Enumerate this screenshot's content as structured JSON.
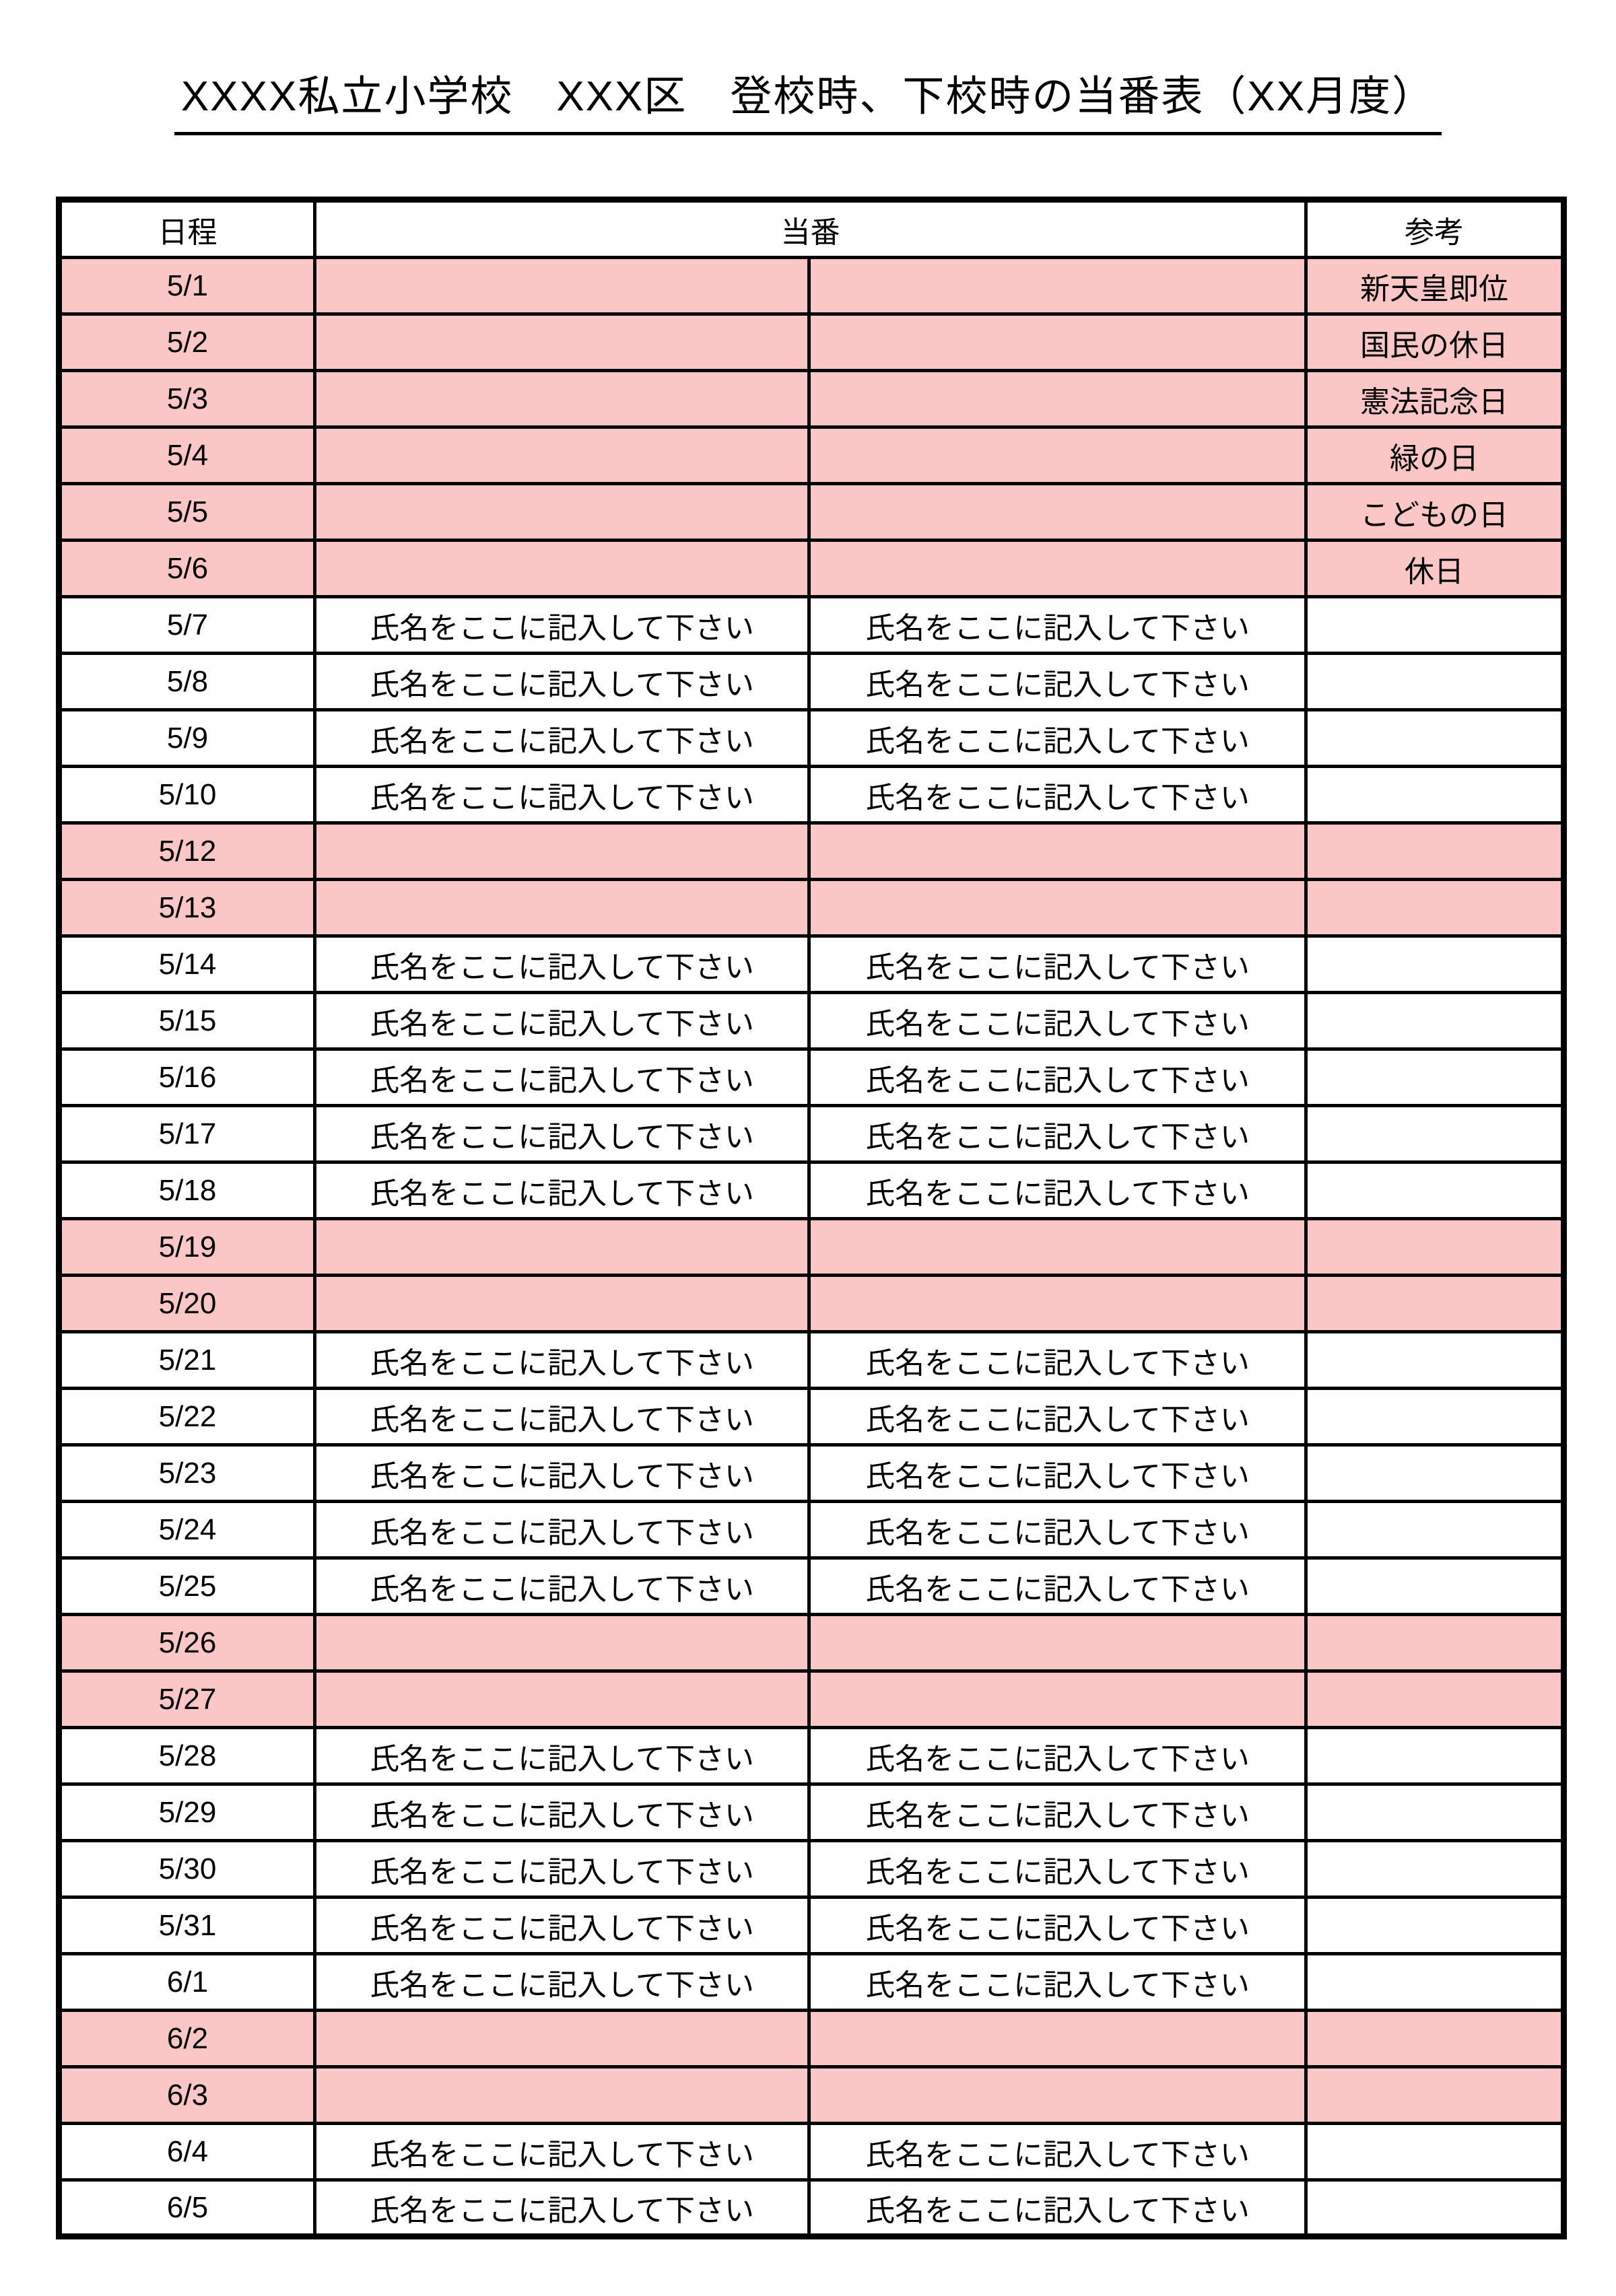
{
  "page": {
    "title": "XXXX私立小学校　XXX区　登校時、下校時の当番表（XX月度）"
  },
  "table": {
    "headers": {
      "date": "日程",
      "duty": "当番",
      "reference": "参考"
    },
    "duty_placeholder": "氏名をここに記入して下さい",
    "colors": {
      "holiday_row_bg": "#FAC6C6",
      "weekday_row_bg": "#FFFFFF",
      "border": "#000000",
      "text": "#000000"
    },
    "rows": [
      {
        "date": "5/1",
        "type": "holiday",
        "duty1": "",
        "duty2": "",
        "note": "新天皇即位"
      },
      {
        "date": "5/2",
        "type": "holiday",
        "duty1": "",
        "duty2": "",
        "note": "国民の休日"
      },
      {
        "date": "5/3",
        "type": "holiday",
        "duty1": "",
        "duty2": "",
        "note": "憲法記念日"
      },
      {
        "date": "5/4",
        "type": "holiday",
        "duty1": "",
        "duty2": "",
        "note": "緑の日"
      },
      {
        "date": "5/5",
        "type": "holiday",
        "duty1": "",
        "duty2": "",
        "note": "こどもの日"
      },
      {
        "date": "5/6",
        "type": "holiday",
        "duty1": "",
        "duty2": "",
        "note": "休日"
      },
      {
        "date": "5/7",
        "type": "weekday",
        "duty1": "氏名をここに記入して下さい",
        "duty2": "氏名をここに記入して下さい",
        "note": ""
      },
      {
        "date": "5/8",
        "type": "weekday",
        "duty1": "氏名をここに記入して下さい",
        "duty2": "氏名をここに記入して下さい",
        "note": ""
      },
      {
        "date": "5/9",
        "type": "weekday",
        "duty1": "氏名をここに記入して下さい",
        "duty2": "氏名をここに記入して下さい",
        "note": ""
      },
      {
        "date": "5/10",
        "type": "weekday",
        "duty1": "氏名をここに記入して下さい",
        "duty2": "氏名をここに記入して下さい",
        "note": ""
      },
      {
        "date": "5/12",
        "type": "holiday",
        "duty1": "",
        "duty2": "",
        "note": ""
      },
      {
        "date": "5/13",
        "type": "holiday",
        "duty1": "",
        "duty2": "",
        "note": ""
      },
      {
        "date": "5/14",
        "type": "weekday",
        "duty1": "氏名をここに記入して下さい",
        "duty2": "氏名をここに記入して下さい",
        "note": ""
      },
      {
        "date": "5/15",
        "type": "weekday",
        "duty1": "氏名をここに記入して下さい",
        "duty2": "氏名をここに記入して下さい",
        "note": ""
      },
      {
        "date": "5/16",
        "type": "weekday",
        "duty1": "氏名をここに記入して下さい",
        "duty2": "氏名をここに記入して下さい",
        "note": ""
      },
      {
        "date": "5/17",
        "type": "weekday",
        "duty1": "氏名をここに記入して下さい",
        "duty2": "氏名をここに記入して下さい",
        "note": ""
      },
      {
        "date": "5/18",
        "type": "weekday",
        "duty1": "氏名をここに記入して下さい",
        "duty2": "氏名をここに記入して下さい",
        "note": ""
      },
      {
        "date": "5/19",
        "type": "holiday",
        "duty1": "",
        "duty2": "",
        "note": ""
      },
      {
        "date": "5/20",
        "type": "holiday",
        "duty1": "",
        "duty2": "",
        "note": ""
      },
      {
        "date": "5/21",
        "type": "weekday",
        "duty1": "氏名をここに記入して下さい",
        "duty2": "氏名をここに記入して下さい",
        "note": ""
      },
      {
        "date": "5/22",
        "type": "weekday",
        "duty1": "氏名をここに記入して下さい",
        "duty2": "氏名をここに記入して下さい",
        "note": ""
      },
      {
        "date": "5/23",
        "type": "weekday",
        "duty1": "氏名をここに記入して下さい",
        "duty2": "氏名をここに記入して下さい",
        "note": ""
      },
      {
        "date": "5/24",
        "type": "weekday",
        "duty1": "氏名をここに記入して下さい",
        "duty2": "氏名をここに記入して下さい",
        "note": ""
      },
      {
        "date": "5/25",
        "type": "weekday",
        "duty1": "氏名をここに記入して下さい",
        "duty2": "氏名をここに記入して下さい",
        "note": ""
      },
      {
        "date": "5/26",
        "type": "holiday",
        "duty1": "",
        "duty2": "",
        "note": ""
      },
      {
        "date": "5/27",
        "type": "holiday",
        "duty1": "",
        "duty2": "",
        "note": ""
      },
      {
        "date": "5/28",
        "type": "weekday",
        "duty1": "氏名をここに記入して下さい",
        "duty2": "氏名をここに記入して下さい",
        "note": ""
      },
      {
        "date": "5/29",
        "type": "weekday",
        "duty1": "氏名をここに記入して下さい",
        "duty2": "氏名をここに記入して下さい",
        "note": ""
      },
      {
        "date": "5/30",
        "type": "weekday",
        "duty1": "氏名をここに記入して下さい",
        "duty2": "氏名をここに記入して下さい",
        "note": ""
      },
      {
        "date": "5/31",
        "type": "weekday",
        "duty1": "氏名をここに記入して下さい",
        "duty2": "氏名をここに記入して下さい",
        "note": ""
      },
      {
        "date": "6/1",
        "type": "weekday",
        "duty1": "氏名をここに記入して下さい",
        "duty2": "氏名をここに記入して下さい",
        "note": ""
      },
      {
        "date": "6/2",
        "type": "holiday",
        "duty1": "",
        "duty2": "",
        "note": ""
      },
      {
        "date": "6/3",
        "type": "holiday",
        "duty1": "",
        "duty2": "",
        "note": ""
      },
      {
        "date": "6/4",
        "type": "weekday",
        "duty1": "氏名をここに記入して下さい",
        "duty2": "氏名をここに記入して下さい",
        "note": ""
      },
      {
        "date": "6/5",
        "type": "weekday",
        "duty1": "氏名をここに記入して下さい",
        "duty2": "氏名をここに記入して下さい",
        "note": ""
      }
    ]
  }
}
